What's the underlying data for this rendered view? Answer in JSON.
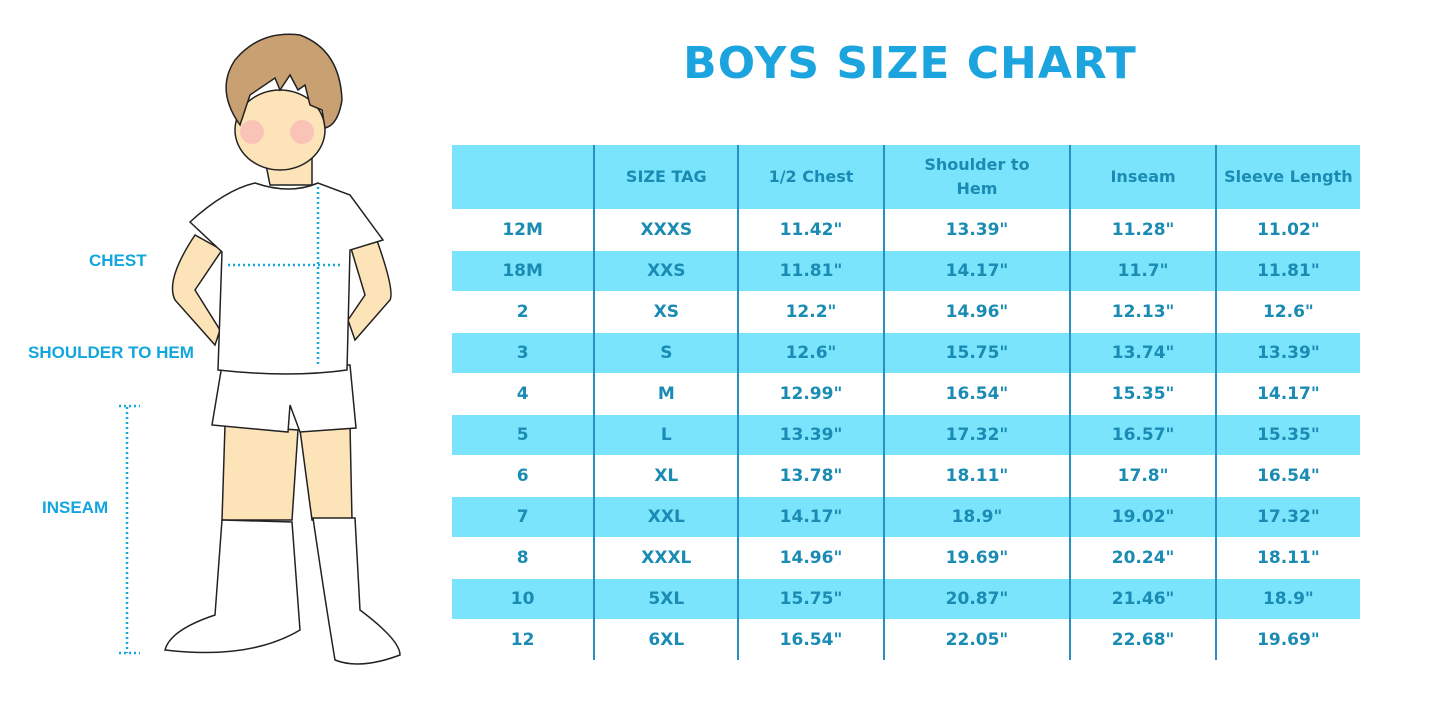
{
  "title": "BOYS SIZE CHART",
  "measure_labels": {
    "chest": "CHEST",
    "shoulder_to_hem": "SHOULDER TO HEM",
    "inseam": "INSEAM"
  },
  "colors": {
    "accent": "#1ba4de",
    "row_highlight": "#7ae4fc",
    "table_text": "#1a8bb3"
  },
  "table": {
    "headers": [
      "",
      "SIZE TAG",
      "1/2 Chest",
      "Shoulder to Hem",
      "Inseam",
      "Sleeve Length"
    ],
    "rows": [
      [
        "12M",
        "XXXS",
        "11.42\"",
        "13.39\"",
        "11.28\"",
        "11.02\""
      ],
      [
        "18M",
        "XXS",
        "11.81\"",
        "14.17\"",
        "11.7\"",
        "11.81\""
      ],
      [
        "2",
        "XS",
        "12.2\"",
        "14.96\"",
        "12.13\"",
        "12.6\""
      ],
      [
        "3",
        "S",
        "12.6\"",
        "15.75\"",
        "13.74\"",
        "13.39\""
      ],
      [
        "4",
        "M",
        "12.99\"",
        "16.54\"",
        "15.35\"",
        "14.17\""
      ],
      [
        "5",
        "L",
        "13.39\"",
        "17.32\"",
        "16.57\"",
        "15.35\""
      ],
      [
        "6",
        "XL",
        "13.78\"",
        "18.11\"",
        "17.8\"",
        "16.54\""
      ],
      [
        "7",
        "XXL",
        "14.17\"",
        "18.9\"",
        "19.02\"",
        "17.32\""
      ],
      [
        "8",
        "XXXL",
        "14.96\"",
        "19.69\"",
        "20.24\"",
        "18.11\""
      ],
      [
        "10",
        "5XL",
        "15.75\"",
        "20.87\"",
        "21.46\"",
        "18.9\""
      ],
      [
        "12",
        "6XL",
        "16.54\"",
        "22.05\"",
        "22.68\"",
        "19.69\""
      ]
    ]
  }
}
